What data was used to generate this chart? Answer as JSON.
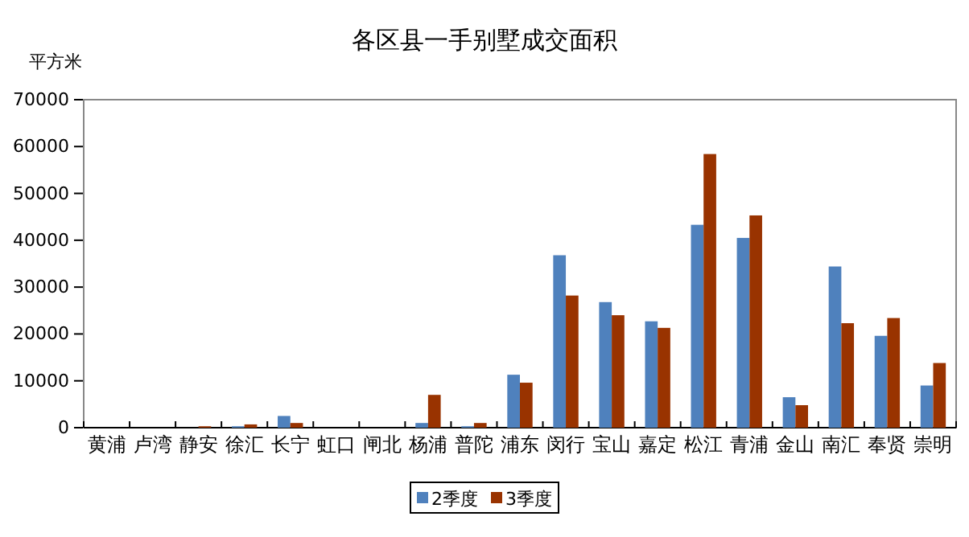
{
  "chart_data": {
    "type": "bar",
    "title": "各区县一手别墅成交面积",
    "ylabel": "平方米",
    "categories": [
      "黄浦",
      "卢湾",
      "静安",
      "徐汇",
      "长宁",
      "虹口",
      "闸北",
      "杨浦",
      "普陀",
      "浦东",
      "闵行",
      "宝山",
      "嘉定",
      "松江",
      "青浦",
      "金山",
      "南汇",
      "奉贤",
      "崇明"
    ],
    "series": [
      {
        "name": "2季度",
        "color": "#4f81bd",
        "values": [
          0,
          0,
          0,
          300,
          2500,
          0,
          0,
          1000,
          300,
          11300,
          36800,
          26800,
          22700,
          43300,
          40500,
          6500,
          34400,
          19600,
          9000
        ]
      },
      {
        "name": "3季度",
        "color": "#993300",
        "values": [
          0,
          0,
          300,
          700,
          1000,
          0,
          0,
          7000,
          1000,
          9600,
          28200,
          24000,
          21300,
          58400,
          45300,
          4800,
          22300,
          23400,
          13800
        ]
      }
    ],
    "ylim": [
      0,
      70000
    ],
    "yticks": [
      0,
      10000,
      20000,
      30000,
      40000,
      50000,
      60000,
      70000
    ],
    "grid": false,
    "legend": "bottom"
  }
}
